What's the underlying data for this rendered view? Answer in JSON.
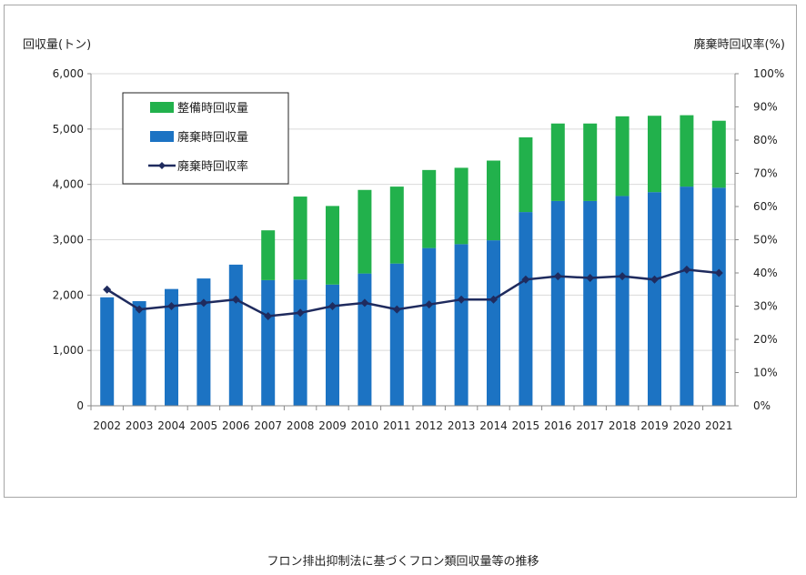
{
  "caption": "フロン排出抑制法に基づくフロン類回収量等の推移",
  "colors": {
    "maintenance": "#22b14c",
    "disposal": "#1c73c3",
    "rate": "#1f2b5e"
  },
  "chart_data": {
    "type": "bar",
    "stacked": true,
    "categories": [
      "2002",
      "2003",
      "2004",
      "2005",
      "2006",
      "2007",
      "2008",
      "2009",
      "2010",
      "2011",
      "2012",
      "2013",
      "2014",
      "2015",
      "2016",
      "2017",
      "2018",
      "2019",
      "2020",
      "2021"
    ],
    "ylabel": "回収量(トン)",
    "y2label": "廃棄時回収率(%)",
    "ylim": [
      0,
      6000
    ],
    "y2lim": [
      0,
      100
    ],
    "yticks": [
      "0",
      "1,000",
      "2,000",
      "3,000",
      "4,000",
      "5,000",
      "6,000"
    ],
    "y2ticks": [
      "0%",
      "10%",
      "20%",
      "30%",
      "40%",
      "50%",
      "60%",
      "70%",
      "80%",
      "90%",
      "100%"
    ],
    "grid": true,
    "legend_position": "top-left",
    "series": [
      {
        "name": "整備時回収量",
        "kind": "bar",
        "values": [
          0,
          0,
          0,
          0,
          0,
          900,
          1500,
          1420,
          1510,
          1390,
          1410,
          1380,
          1440,
          1350,
          1400,
          1400,
          1440,
          1380,
          1290,
          1210
        ]
      },
      {
        "name": "廃棄時回収量",
        "kind": "bar",
        "values": [
          1960,
          1890,
          2110,
          2300,
          2550,
          2270,
          2280,
          2190,
          2390,
          2570,
          2850,
          2920,
          2990,
          3500,
          3700,
          3700,
          3790,
          3860,
          3960,
          3940
        ]
      },
      {
        "name": "廃棄時回収率",
        "kind": "line",
        "axis": "right",
        "values": [
          35,
          29,
          30,
          31,
          32,
          27,
          28,
          30,
          31,
          29,
          30.5,
          32,
          32,
          38,
          39,
          38.5,
          39,
          38,
          41,
          40
        ]
      }
    ]
  }
}
